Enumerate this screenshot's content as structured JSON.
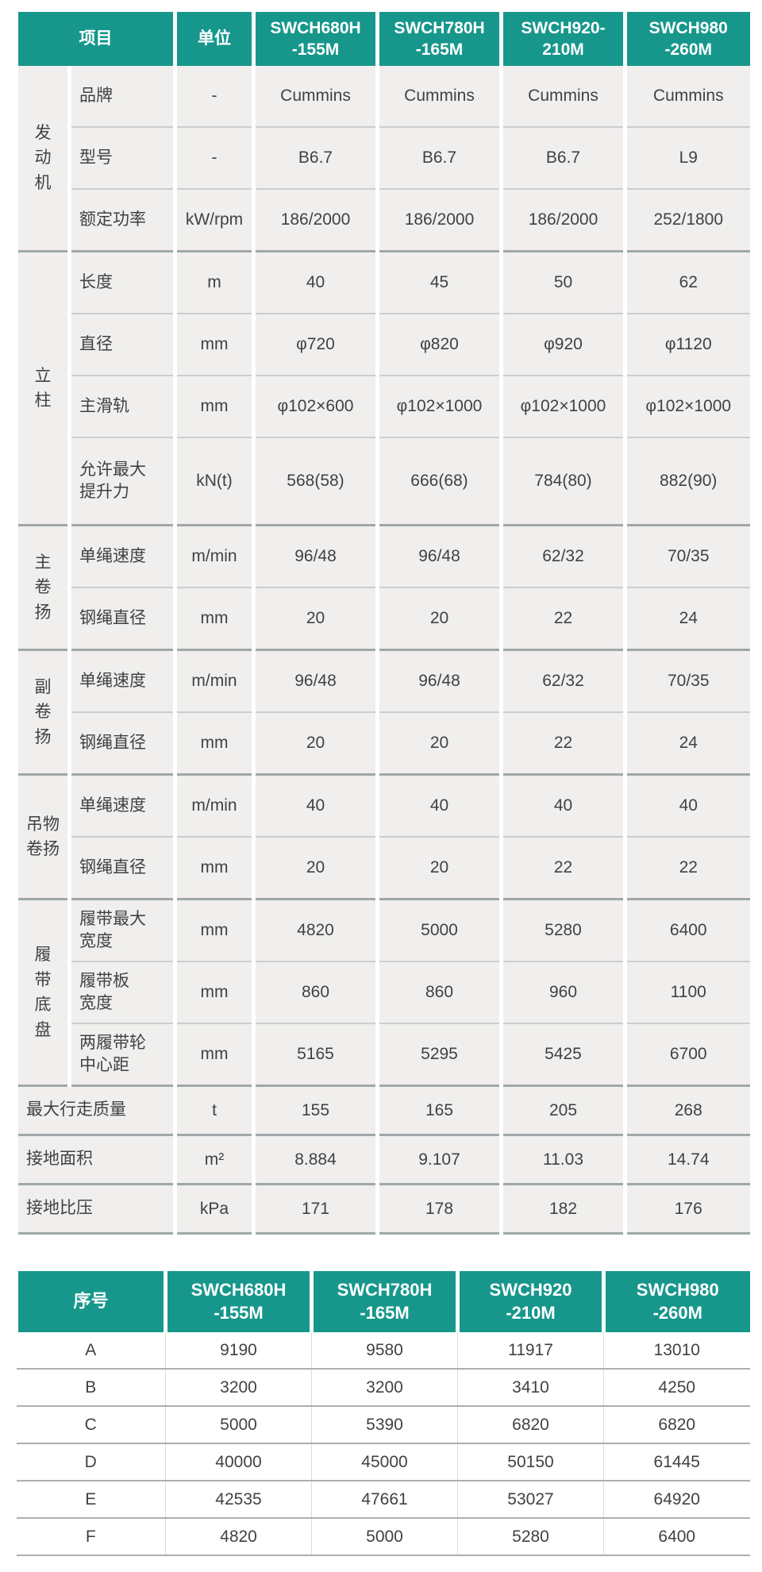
{
  "theme": {
    "header_bg": "#17978c",
    "header_text": "#ffffff",
    "cell_bg": "#f0efee",
    "body_text": "#3f4244",
    "row_line": "#c9cecd",
    "section_line": "#9fa8a8"
  },
  "spec_table": {
    "header": {
      "item_label": "项目",
      "unit_label": "单位",
      "models": [
        "SWCH680H\n-155M",
        "SWCH780H\n-165M",
        "SWCH920-\n210M",
        "SWCH980\n-260M"
      ]
    },
    "sections": [
      {
        "group": "发\n动\n机",
        "rows": [
          {
            "label": "品牌",
            "unit": "-",
            "values": [
              "Cummins",
              "Cummins",
              "Cummins",
              "Cummins"
            ]
          },
          {
            "label": "型号",
            "unit": "-",
            "values": [
              "B6.7",
              "B6.7",
              "B6.7",
              "L9"
            ]
          },
          {
            "label": "额定功率",
            "unit": "kW/rpm",
            "values": [
              "186/2000",
              "186/2000",
              "186/2000",
              "252/1800"
            ]
          }
        ]
      },
      {
        "group": "立\n柱",
        "rows": [
          {
            "label": "长度",
            "unit": "m",
            "values": [
              "40",
              "45",
              "50",
              "62"
            ]
          },
          {
            "label": "直径",
            "unit": "mm",
            "values": [
              "φ720",
              "φ820",
              "φ920",
              "φ1120"
            ]
          },
          {
            "label": "主滑轨",
            "unit": "mm",
            "values": [
              "φ102×600",
              "φ102×1000",
              "φ102×1000",
              "φ102×1000"
            ]
          },
          {
            "label": "允许最大\n提升力",
            "unit": "kN(t)",
            "values": [
              "568(58)",
              "666(68)",
              "784(80)",
              "882(90)"
            ]
          }
        ]
      },
      {
        "group": "主\n卷\n扬",
        "rows": [
          {
            "label": "单绳速度",
            "unit": "m/min",
            "values": [
              "96/48",
              "96/48",
              "62/32",
              "70/35"
            ]
          },
          {
            "label": "钢绳直径",
            "unit": "mm",
            "values": [
              "20",
              "20",
              "22",
              "24"
            ]
          }
        ]
      },
      {
        "group": "副\n卷\n扬",
        "rows": [
          {
            "label": "单绳速度",
            "unit": "m/min",
            "values": [
              "96/48",
              "96/48",
              "62/32",
              "70/35"
            ]
          },
          {
            "label": "钢绳直径",
            "unit": "mm",
            "values": [
              "20",
              "20",
              "22",
              "24"
            ]
          }
        ]
      },
      {
        "group": "吊物\n卷扬",
        "rows": [
          {
            "label": "单绳速度",
            "unit": "m/min",
            "values": [
              "40",
              "40",
              "40",
              "40"
            ]
          },
          {
            "label": "钢绳直径",
            "unit": "mm",
            "values": [
              "20",
              "20",
              "22",
              "22"
            ]
          }
        ]
      },
      {
        "group": "履\n带\n底\n盘",
        "rows": [
          {
            "label": "履带最大\n宽度",
            "unit": "mm",
            "values": [
              "4820",
              "5000",
              "5280",
              "6400"
            ]
          },
          {
            "label": "履带板\n宽度",
            "unit": "mm",
            "values": [
              "860",
              "860",
              "960",
              "1100"
            ]
          },
          {
            "label": "两履带轮\n中心距",
            "unit": "mm",
            "values": [
              "5165",
              "5295",
              "5425",
              "6700"
            ]
          }
        ]
      }
    ],
    "footer_rows": [
      {
        "label": "最大行走质量",
        "unit": "t",
        "values": [
          "155",
          "165",
          "205",
          "268"
        ]
      },
      {
        "label": "接地面积",
        "unit": "m²",
        "values": [
          "8.884",
          "9.107",
          "11.03",
          "14.74"
        ]
      },
      {
        "label": "接地比压",
        "unit": "kPa",
        "values": [
          "171",
          "178",
          "182",
          "176"
        ]
      }
    ]
  },
  "dimension_table": {
    "header": {
      "index_label": "序号",
      "models": [
        "SWCH680H\n-155M",
        "SWCH780H\n-165M",
        "SWCH920\n-210M",
        "SWCH980\n-260M"
      ]
    },
    "rows": [
      {
        "label": "A",
        "values": [
          "9190",
          "9580",
          "11917",
          "13010"
        ]
      },
      {
        "label": "B",
        "values": [
          "3200",
          "3200",
          "3410",
          "4250"
        ]
      },
      {
        "label": "C",
        "values": [
          "5000",
          "5390",
          "6820",
          "6820"
        ]
      },
      {
        "label": "D",
        "values": [
          "40000",
          "45000",
          "50150",
          "61445"
        ]
      },
      {
        "label": "E",
        "values": [
          "42535",
          "47661",
          "53027",
          "64920"
        ]
      },
      {
        "label": "F",
        "values": [
          "4820",
          "5000",
          "5280",
          "6400"
        ]
      }
    ]
  }
}
